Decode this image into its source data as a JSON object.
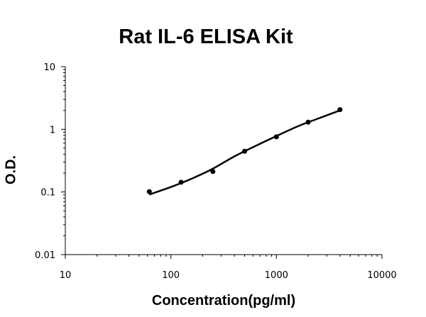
{
  "chart_data": {
    "type": "scatter",
    "title": "Rat IL-6 ELISA Kit",
    "xlabel": "Concentration(pg/ml)",
    "ylabel": "O.D.",
    "x_scale": "log",
    "y_scale": "log",
    "xlim": [
      10,
      10000
    ],
    "ylim": [
      0.01,
      10
    ],
    "x_ticks": [
      "10",
      "100",
      "1000",
      "10000"
    ],
    "y_ticks": [
      "0.01",
      "0.1",
      "1",
      "10"
    ],
    "grid": false,
    "legend": "none",
    "series": [
      {
        "points": [
          {
            "x": 62.5,
            "y": 0.101
          },
          {
            "x": 125,
            "y": 0.143
          },
          {
            "x": 250,
            "y": 0.212
          },
          {
            "x": 500,
            "y": 0.447
          },
          {
            "x": 1000,
            "y": 0.76
          },
          {
            "x": 2000,
            "y": 1.3
          },
          {
            "x": 4000,
            "y": 2.06
          }
        ],
        "fit_curve": [
          {
            "x": 62.5,
            "y": 0.091
          },
          {
            "x": 100,
            "y": 0.12
          },
          {
            "x": 160,
            "y": 0.165
          },
          {
            "x": 250,
            "y": 0.235
          },
          {
            "x": 400,
            "y": 0.37
          },
          {
            "x": 630,
            "y": 0.54
          },
          {
            "x": 1000,
            "y": 0.78
          },
          {
            "x": 1600,
            "y": 1.12
          },
          {
            "x": 2500,
            "y": 1.49
          },
          {
            "x": 4000,
            "y": 2.0
          }
        ],
        "color": "#000000"
      }
    ]
  }
}
